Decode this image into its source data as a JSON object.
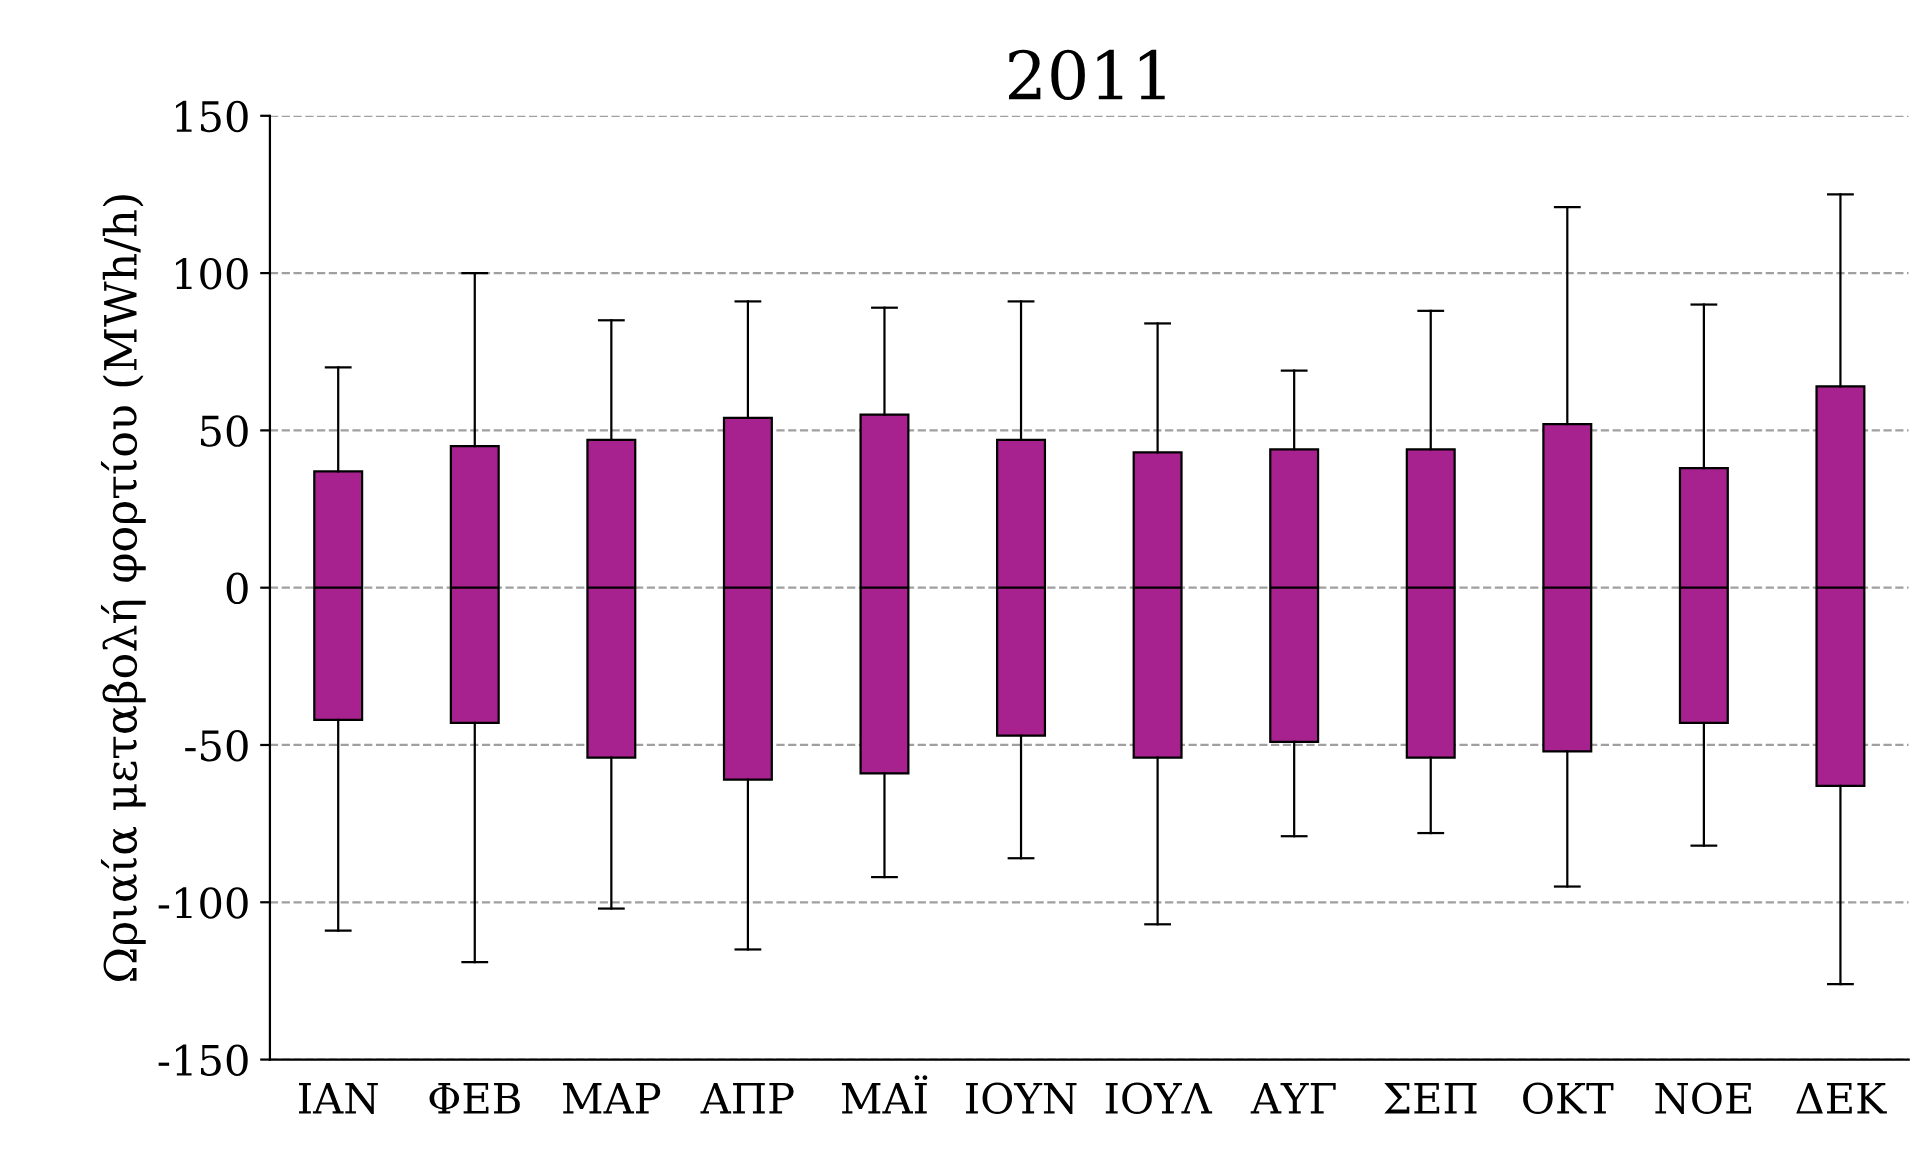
{
  "chart_data": {
    "type": "box",
    "title": "2011",
    "ylabel": "Ωριαία μεταβολή φορτίου (MWh/h)",
    "categories": [
      "ΙΑΝ",
      "ΦΕΒ",
      "ΜΑΡ",
      "ΑΠΡ",
      "ΜΑΪ",
      "ΙΟΥΝ",
      "ΙΟΥΛ",
      "ΑΥΓ",
      "ΣΕΠ",
      "ΟΚΤ",
      "ΝΟΕ",
      "ΔΕΚ"
    ],
    "color": "#a8228f",
    "ylim": [
      -150,
      150
    ],
    "yticks": [
      -150,
      -100,
      -50,
      0,
      50,
      100,
      150
    ],
    "grid": "y",
    "boxes": [
      {
        "low": -109,
        "q1": -42,
        "median": 0,
        "q3": 37,
        "high": 70
      },
      {
        "low": -119,
        "q1": -43,
        "median": 0,
        "q3": 45,
        "high": 100
      },
      {
        "low": -102,
        "q1": -54,
        "median": 0,
        "q3": 47,
        "high": 85
      },
      {
        "low": -115,
        "q1": -61,
        "median": 0,
        "q3": 54,
        "high": 91
      },
      {
        "low": -92,
        "q1": -59,
        "median": 0,
        "q3": 55,
        "high": 89
      },
      {
        "low": -86,
        "q1": -47,
        "median": 0,
        "q3": 47,
        "high": 91
      },
      {
        "low": -107,
        "q1": -54,
        "median": 0,
        "q3": 43,
        "high": 84
      },
      {
        "low": -79,
        "q1": -49,
        "median": 0,
        "q3": 44,
        "high": 69
      },
      {
        "low": -78,
        "q1": -54,
        "median": 0,
        "q3": 44,
        "high": 88
      },
      {
        "low": -95,
        "q1": -52,
        "median": 0,
        "q3": 52,
        "high": 121
      },
      {
        "low": -82,
        "q1": -43,
        "median": 0,
        "q3": 38,
        "high": 90
      },
      {
        "low": -126,
        "q1": -63,
        "median": 0,
        "q3": 64,
        "high": 125
      }
    ]
  }
}
